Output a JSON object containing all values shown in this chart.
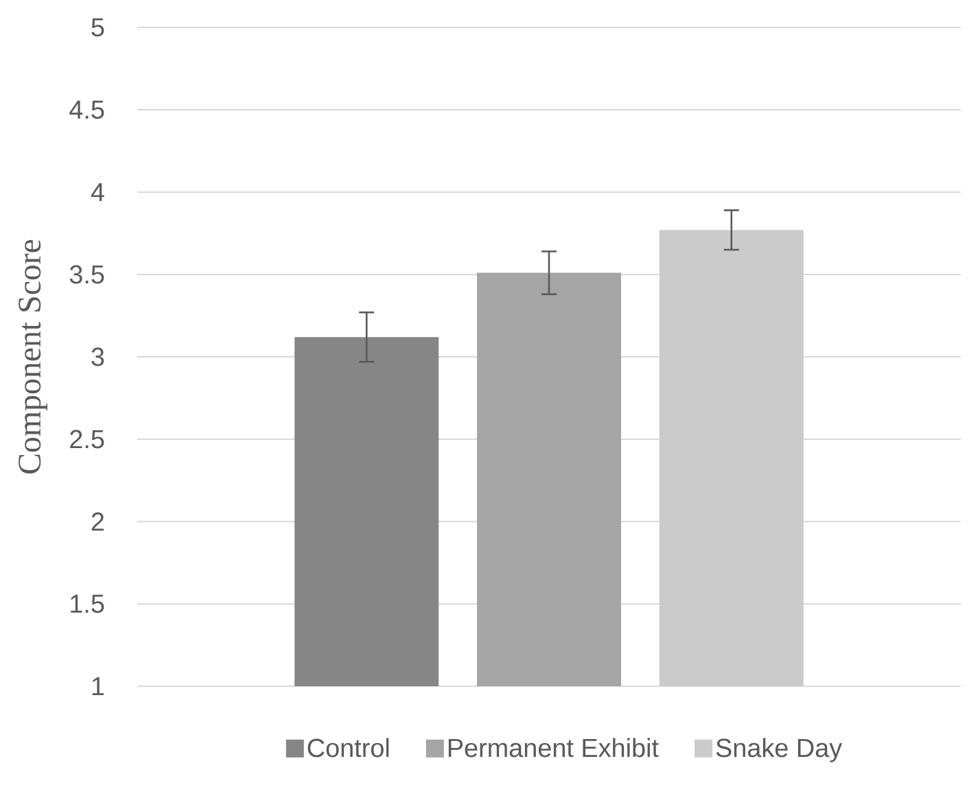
{
  "chart_data": {
    "type": "bar",
    "ylabel": "Component Score",
    "categories": [
      null
    ],
    "series": [
      {
        "name": "Control",
        "color": "#868686",
        "values": [
          3.12
        ],
        "errors": [
          0.15
        ]
      },
      {
        "name": "Permanent Exhibit",
        "color": "#a5a5a5",
        "values": [
          3.51
        ],
        "errors": [
          0.13
        ]
      },
      {
        "name": "Snake Day",
        "color": "#cbcbcb",
        "values": [
          3.77
        ],
        "errors": [
          0.12
        ]
      }
    ],
    "ylim": [
      1,
      5
    ],
    "yticks": [
      1,
      1.5,
      2,
      2.5,
      3,
      3.5,
      4,
      4.5,
      5
    ],
    "grid": "y",
    "legend": "bottom"
  }
}
